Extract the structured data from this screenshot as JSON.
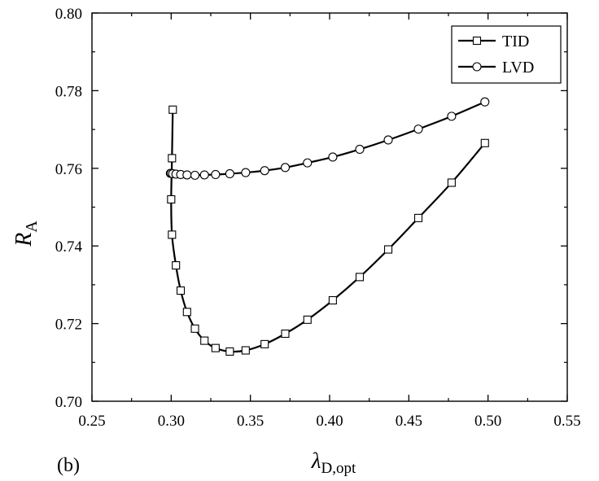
{
  "panel_label": "(b)",
  "chart_data": {
    "type": "line",
    "xlabel": {
      "main": "λ",
      "sub": "D,opt"
    },
    "ylabel": {
      "main": "R",
      "sub": "A"
    },
    "xlim": [
      0.25,
      0.55
    ],
    "ylim": [
      0.7,
      0.8
    ],
    "xticks": [
      "0.25",
      "0.30",
      "0.35",
      "0.40",
      "0.45",
      "0.50",
      "0.55"
    ],
    "yticks": [
      "0.70",
      "0.72",
      "0.74",
      "0.76",
      "0.78",
      "0.80"
    ],
    "legend_position": "top-right",
    "series": [
      {
        "name": "TID",
        "marker": "square",
        "x": [
          0.301,
          0.3005,
          0.3,
          0.3005,
          0.303,
          0.306,
          0.31,
          0.315,
          0.321,
          0.328,
          0.337,
          0.347,
          0.359,
          0.372,
          0.386,
          0.402,
          0.419,
          0.437,
          0.456,
          0.477,
          0.498
        ],
        "y": [
          0.7751,
          0.7626,
          0.752,
          0.7429,
          0.735,
          0.7285,
          0.723,
          0.7187,
          0.7156,
          0.7137,
          0.7128,
          0.7131,
          0.7147,
          0.7174,
          0.721,
          0.726,
          0.732,
          0.7391,
          0.7472,
          0.7563,
          0.7665
        ]
      },
      {
        "name": "LVD",
        "marker": "circle",
        "x": [
          0.2995,
          0.3,
          0.301,
          0.303,
          0.306,
          0.31,
          0.315,
          0.321,
          0.328,
          0.337,
          0.347,
          0.359,
          0.372,
          0.386,
          0.402,
          0.419,
          0.437,
          0.456,
          0.477,
          0.498
        ],
        "y": [
          0.7587,
          0.7587,
          0.7586,
          0.7585,
          0.7584,
          0.7583,
          0.7582,
          0.7583,
          0.7584,
          0.7586,
          0.7589,
          0.7594,
          0.7602,
          0.7614,
          0.7629,
          0.7649,
          0.7673,
          0.7701,
          0.7734,
          0.7771
        ]
      }
    ]
  },
  "colors": {
    "line": "#000000",
    "marker_fill": "#ffffff",
    "background": "#ffffff"
  }
}
